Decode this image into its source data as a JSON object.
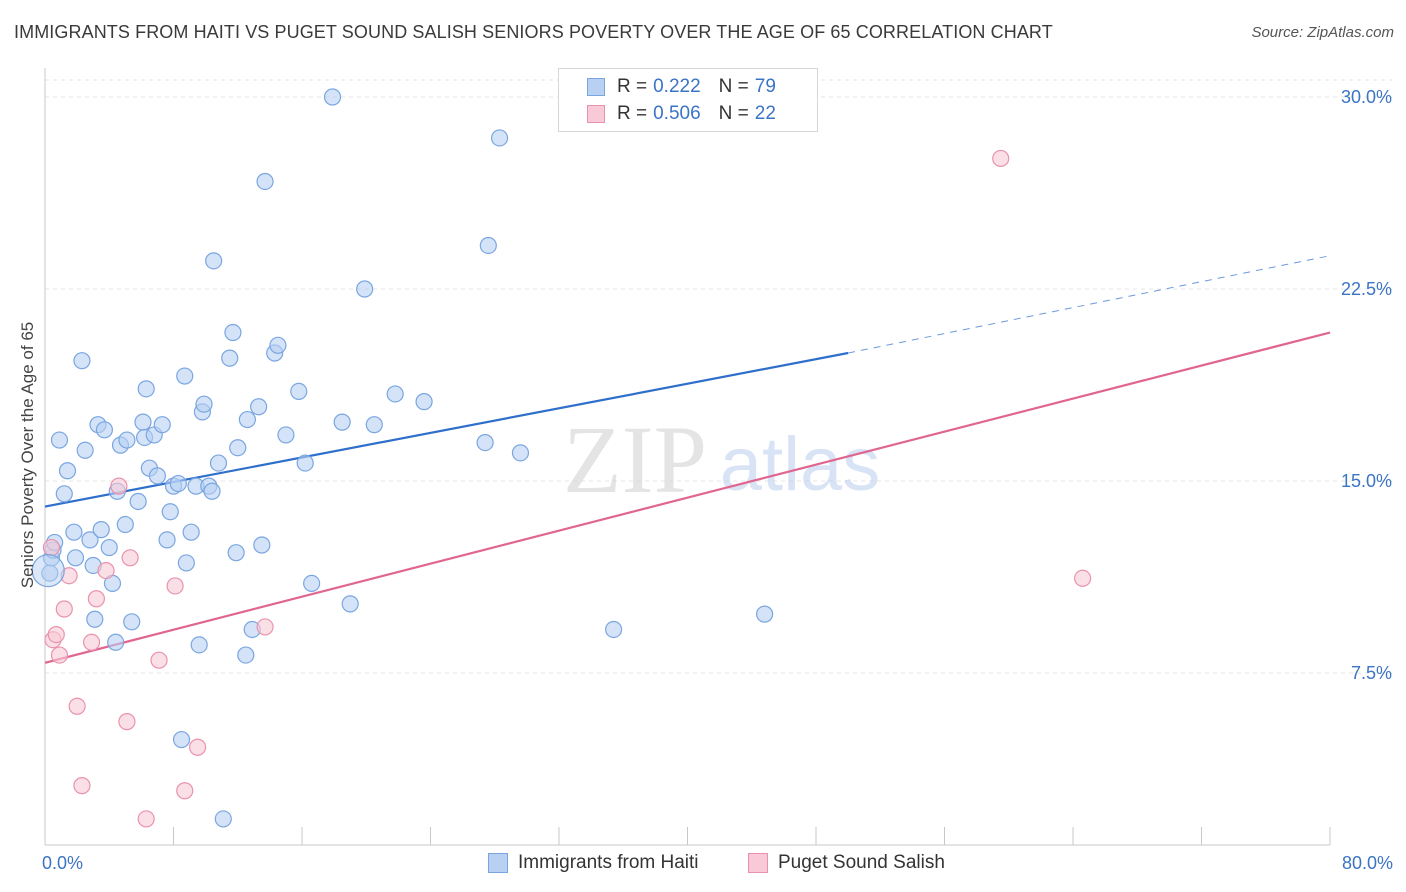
{
  "title": "IMMIGRANTS FROM HAITI VS PUGET SOUND SALISH SENIORS POVERTY OVER THE AGE OF 65 CORRELATION CHART",
  "source": "Source: ZipAtlas.com",
  "watermark": {
    "zip": "ZIP",
    "atlas": "atlas"
  },
  "legend": {
    "series1": {
      "r_label": "R =",
      "r_value": "0.222",
      "n_label": "N =",
      "n_value": "79"
    },
    "series2": {
      "r_label": "R =",
      "r_value": "0.506",
      "n_label": "N =",
      "n_value": "22"
    }
  },
  "colors": {
    "blue_fill": "#b8d1f3",
    "blue_stroke": "#7aa6e0",
    "blue_line": "#2f6fcc",
    "pink_fill": "#f8c9d6",
    "pink_stroke": "#ea92ad",
    "pink_line": "#e0668f",
    "tick_text": "#3b74c4",
    "grid": "#e4e4e4"
  },
  "chart_data": {
    "type": "scatter",
    "title": "IMMIGRANTS FROM HAITI VS PUGET SOUND SALISH SENIORS POVERTY OVER THE AGE OF 65 CORRELATION CHART",
    "xlabel": "",
    "ylabel": "Seniors Poverty Over the Age of 65",
    "xlim": [
      0,
      80
    ],
    "ylim": [
      0,
      30.5
    ],
    "x_tick_labels": [
      "0.0%",
      "80.0%"
    ],
    "y_ticks": [
      {
        "value": 7.5,
        "label": "7.5%"
      },
      {
        "value": 15.0,
        "label": "15.0%"
      },
      {
        "value": 22.5,
        "label": "22.5%"
      },
      {
        "value": 30.0,
        "label": "30.0%"
      }
    ],
    "series": [
      {
        "name": "Immigrants from Haiti",
        "color": "blue",
        "trend": {
          "x0": 0,
          "y0": 14.0,
          "x1": 50,
          "y1": 20.0,
          "dash_to_x": 80,
          "dash_to_y": 23.8
        },
        "points": [
          [
            0.3,
            11.4
          ],
          [
            0.4,
            12.0
          ],
          [
            0.5,
            12.3
          ],
          [
            0.6,
            12.6
          ],
          [
            0.9,
            16.6
          ],
          [
            1.2,
            14.5
          ],
          [
            1.4,
            15.4
          ],
          [
            1.8,
            13.0
          ],
          [
            1.9,
            12.0
          ],
          [
            2.3,
            19.7
          ],
          [
            2.5,
            16.2
          ],
          [
            2.8,
            12.7
          ],
          [
            3.0,
            11.7
          ],
          [
            3.1,
            9.6
          ],
          [
            3.3,
            17.2
          ],
          [
            3.5,
            13.1
          ],
          [
            3.7,
            17.0
          ],
          [
            4.0,
            12.4
          ],
          [
            4.2,
            11.0
          ],
          [
            4.4,
            8.7
          ],
          [
            4.5,
            14.6
          ],
          [
            4.7,
            16.4
          ],
          [
            5.0,
            13.3
          ],
          [
            5.1,
            16.6
          ],
          [
            5.4,
            9.5
          ],
          [
            5.8,
            14.2
          ],
          [
            6.1,
            17.3
          ],
          [
            6.2,
            16.7
          ],
          [
            6.3,
            18.6
          ],
          [
            6.5,
            15.5
          ],
          [
            6.8,
            16.8
          ],
          [
            7.0,
            15.2
          ],
          [
            7.3,
            17.2
          ],
          [
            7.6,
            12.7
          ],
          [
            7.8,
            13.8
          ],
          [
            8.0,
            14.8
          ],
          [
            8.3,
            14.9
          ],
          [
            8.5,
            4.9
          ],
          [
            8.7,
            19.1
          ],
          [
            8.8,
            11.8
          ],
          [
            9.1,
            13.0
          ],
          [
            9.4,
            14.8
          ],
          [
            9.6,
            8.6
          ],
          [
            9.8,
            17.7
          ],
          [
            9.9,
            18.0
          ],
          [
            10.2,
            14.8
          ],
          [
            10.4,
            14.6
          ],
          [
            10.5,
            23.6
          ],
          [
            10.8,
            15.7
          ],
          [
            11.1,
            1.8
          ],
          [
            11.5,
            19.8
          ],
          [
            11.7,
            20.8
          ],
          [
            11.9,
            12.2
          ],
          [
            12.0,
            16.3
          ],
          [
            12.5,
            8.2
          ],
          [
            12.6,
            17.4
          ],
          [
            12.9,
            9.2
          ],
          [
            13.3,
            17.9
          ],
          [
            13.5,
            12.5
          ],
          [
            13.7,
            26.7
          ],
          [
            14.3,
            20.0
          ],
          [
            14.5,
            20.3
          ],
          [
            15.0,
            16.8
          ],
          [
            15.8,
            18.5
          ],
          [
            16.2,
            15.7
          ],
          [
            16.6,
            11.0
          ],
          [
            17.9,
            30.0
          ],
          [
            18.5,
            17.3
          ],
          [
            19.0,
            10.2
          ],
          [
            19.9,
            22.5
          ],
          [
            20.5,
            17.2
          ],
          [
            21.8,
            18.4
          ],
          [
            23.6,
            18.1
          ],
          [
            27.4,
            16.5
          ],
          [
            27.6,
            24.2
          ],
          [
            28.3,
            28.4
          ],
          [
            29.6,
            16.1
          ],
          [
            35.4,
            9.2
          ],
          [
            44.8,
            9.8
          ]
        ]
      },
      {
        "name": "Puget Sound Salish",
        "color": "pink",
        "trend": {
          "x0": 0,
          "y0": 7.9,
          "x1": 80,
          "y1": 20.8
        },
        "points": [
          [
            0.5,
            8.8
          ],
          [
            0.7,
            9.0
          ],
          [
            0.9,
            8.2
          ],
          [
            1.2,
            10.0
          ],
          [
            1.5,
            11.3
          ],
          [
            2.0,
            6.2
          ],
          [
            2.3,
            3.1
          ],
          [
            2.9,
            8.7
          ],
          [
            3.2,
            10.4
          ],
          [
            3.8,
            11.5
          ],
          [
            4.6,
            14.8
          ],
          [
            5.1,
            5.6
          ],
          [
            5.3,
            12.0
          ],
          [
            6.3,
            1.8
          ],
          [
            7.1,
            8.0
          ],
          [
            8.1,
            10.9
          ],
          [
            8.7,
            2.9
          ],
          [
            9.5,
            4.6
          ],
          [
            13.7,
            9.3
          ],
          [
            59.5,
            27.6
          ],
          [
            64.6,
            11.2
          ],
          [
            0.4,
            12.4
          ]
        ]
      }
    ]
  }
}
